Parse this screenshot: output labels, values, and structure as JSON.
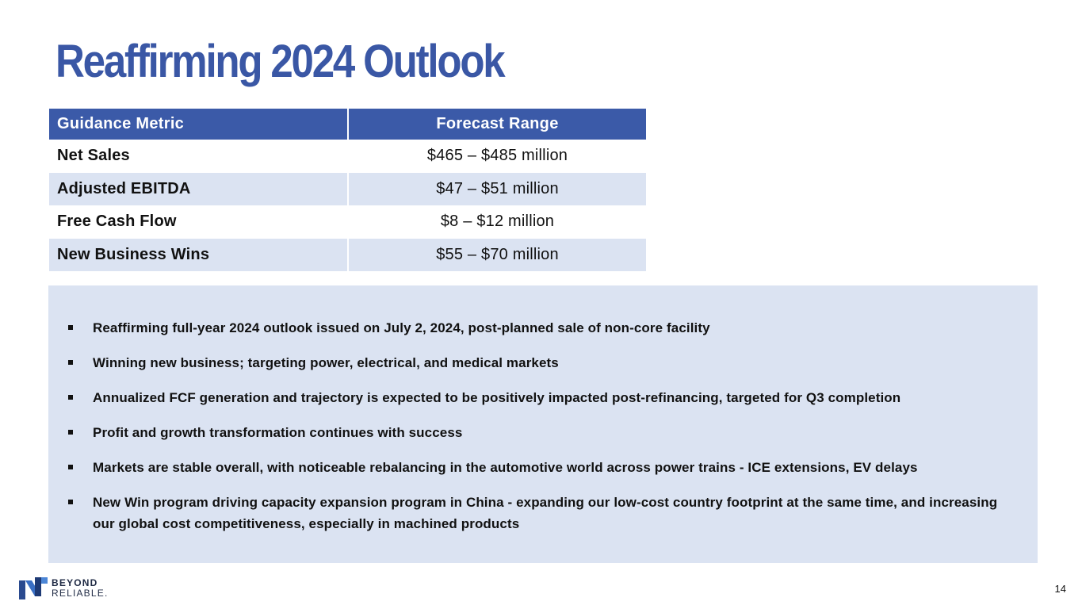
{
  "slide": {
    "title": "Reaffirming 2024 Outlook",
    "page_number": "14"
  },
  "table": {
    "headers": {
      "metric": "Guidance Metric",
      "range": "Forecast Range"
    },
    "rows": [
      {
        "metric": "Net Sales",
        "range": "$465 – $485 million"
      },
      {
        "metric": "Adjusted EBITDA",
        "range": "$47 – $51 million"
      },
      {
        "metric": "Free Cash Flow",
        "range": "$8 – $12 million"
      },
      {
        "metric": "New Business Wins",
        "range": "$55 – $70 million"
      }
    ]
  },
  "bullets": [
    "Reaffirming full-year 2024 outlook issued on July 2, 2024, post-planned sale of non-core facility",
    "Winning new business; targeting power, electrical, and medical markets",
    "Annualized FCF generation and trajectory is expected to be positively impacted post-refinancing, targeted for Q3 completion",
    "Profit and growth transformation continues with success",
    "Markets are stable overall, with noticeable rebalancing in the automotive world across power trains - ICE extensions, EV delays",
    "New Win program driving capacity expansion program in China - expanding our low-cost country footprint at the same time, and increasing our global cost competitiveness, especially in machined products"
  ],
  "logo": {
    "line1": "BEYOND",
    "line2": "RELIABLE."
  },
  "colors": {
    "brand_blue": "#3a57a5",
    "header_fill": "#3b5aa8",
    "band_fill": "#dbe3f2"
  }
}
